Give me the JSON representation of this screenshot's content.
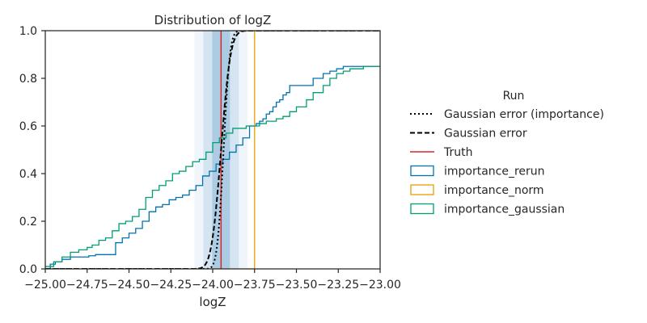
{
  "chart_data": {
    "type": "line",
    "title": "Distribution of logZ",
    "xlabel": "logZ",
    "ylabel": "",
    "xlim": [
      -25.0,
      -23.0
    ],
    "ylim": [
      0.0,
      1.0
    ],
    "x_ticks": [
      -25.0,
      -24.75,
      -24.5,
      -24.25,
      -24.0,
      -23.75,
      -23.5,
      -23.25,
      -23.0
    ],
    "x_tick_labels": [
      "−25.00",
      "−24.75",
      "−24.50",
      "−24.25",
      "−24.00",
      "−23.75",
      "−23.50",
      "−23.25",
      "−23.00"
    ],
    "y_ticks": [
      0.0,
      0.2,
      0.4,
      0.6,
      0.8,
      1.0
    ],
    "y_tick_labels": [
      "0.0",
      "0.2",
      "0.4",
      "0.6",
      "0.8",
      "1.0"
    ],
    "grid": false,
    "legend": {
      "title": "Run",
      "placement": "right, outside plot"
    },
    "truth_value": -23.95,
    "sigma_bands": {
      "center": -23.95,
      "sigma": 0.053,
      "levels": [
        1,
        2,
        3
      ],
      "color": "#1f77b4"
    },
    "series": [
      {
        "name": "Gaussian error (importance)",
        "kind": "gaussian_cdf",
        "mu": -23.935,
        "sigma": 0.03,
        "color": "#000000",
        "dash": "dotted"
      },
      {
        "name": "Gaussian error",
        "kind": "gaussian_cdf",
        "mu": -23.95,
        "sigma": 0.045,
        "color": "#000000",
        "dash": "dashed"
      },
      {
        "name": "Truth",
        "kind": "vline",
        "x": -23.95,
        "color": "#d62728"
      },
      {
        "name": "importance_rerun",
        "kind": "step",
        "color": "#0072b2",
        "x": [
          -25.0,
          -24.97,
          -24.94,
          -24.9,
          -24.85,
          -24.8,
          -24.74,
          -24.7,
          -24.66,
          -24.62,
          -24.58,
          -24.54,
          -24.5,
          -24.46,
          -24.42,
          -24.38,
          -24.34,
          -24.3,
          -24.26,
          -24.22,
          -24.18,
          -24.14,
          -24.1,
          -24.06,
          -24.02,
          -23.98,
          -23.94,
          -23.9,
          -23.86,
          -23.82,
          -23.78,
          -23.74,
          -23.72,
          -23.7,
          -23.68,
          -23.66,
          -23.64,
          -23.62,
          -23.6,
          -23.58,
          -23.56,
          -23.54,
          -23.5,
          -23.4,
          -23.34,
          -23.3,
          -23.26,
          -23.22,
          -23.18,
          -23.14,
          -23.1,
          -23.06,
          -23.0
        ],
        "y": [
          0.0,
          0.02,
          0.03,
          0.04,
          0.05,
          0.05,
          0.055,
          0.06,
          0.06,
          0.06,
          0.11,
          0.13,
          0.15,
          0.17,
          0.2,
          0.24,
          0.26,
          0.27,
          0.29,
          0.3,
          0.31,
          0.33,
          0.35,
          0.39,
          0.41,
          0.44,
          0.46,
          0.49,
          0.52,
          0.55,
          0.6,
          0.61,
          0.62,
          0.63,
          0.65,
          0.66,
          0.68,
          0.7,
          0.71,
          0.73,
          0.74,
          0.77,
          0.77,
          0.8,
          0.82,
          0.83,
          0.84,
          0.85,
          0.85,
          0.85,
          0.85,
          0.85,
          0.85
        ]
      },
      {
        "name": "importance_norm",
        "kind": "step_vertical",
        "x": -23.75,
        "color": "#e69f00"
      },
      {
        "name": "importance_gaussian",
        "kind": "step",
        "color": "#009e73",
        "x": [
          -25.0,
          -24.95,
          -24.9,
          -24.85,
          -24.8,
          -24.75,
          -24.72,
          -24.68,
          -24.64,
          -24.6,
          -24.56,
          -24.52,
          -24.48,
          -24.44,
          -24.4,
          -24.36,
          -24.32,
          -24.28,
          -24.24,
          -24.2,
          -24.16,
          -24.12,
          -24.08,
          -24.04,
          -24.0,
          -23.96,
          -23.92,
          -23.88,
          -23.84,
          -23.8,
          -23.76,
          -23.72,
          -23.68,
          -23.62,
          -23.58,
          -23.54,
          -23.5,
          -23.44,
          -23.4,
          -23.34,
          -23.3,
          -23.26,
          -23.22,
          -23.18,
          -23.14,
          -23.1,
          -23.06,
          -23.0
        ],
        "y": [
          0.01,
          0.03,
          0.05,
          0.07,
          0.08,
          0.09,
          0.1,
          0.12,
          0.13,
          0.16,
          0.19,
          0.2,
          0.22,
          0.25,
          0.3,
          0.33,
          0.35,
          0.37,
          0.4,
          0.41,
          0.43,
          0.45,
          0.46,
          0.49,
          0.53,
          0.55,
          0.57,
          0.59,
          0.59,
          0.6,
          0.6,
          0.61,
          0.62,
          0.63,
          0.64,
          0.66,
          0.68,
          0.71,
          0.74,
          0.77,
          0.8,
          0.82,
          0.83,
          0.84,
          0.84,
          0.85,
          0.85,
          0.85
        ]
      }
    ]
  }
}
